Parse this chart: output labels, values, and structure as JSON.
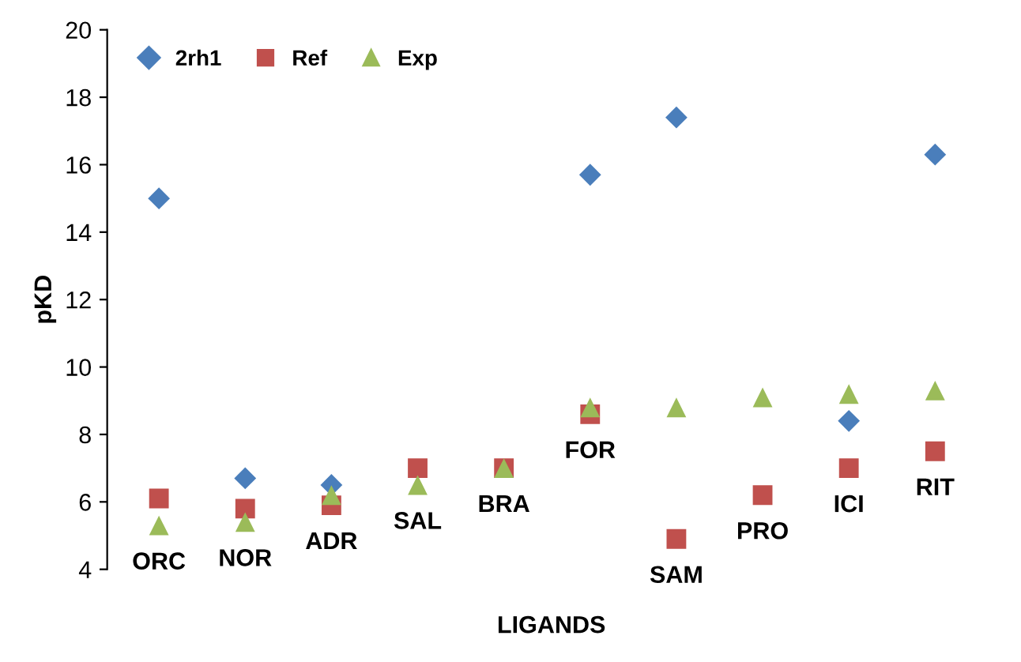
{
  "chart_data": {
    "type": "scatter",
    "xlabel": "LIGANDS",
    "ylabel": "pKD",
    "categories": [
      "ORC",
      "NOR",
      "ADR",
      "SAL",
      "BRA",
      "FOR",
      "SAM",
      "PRO",
      "ICI",
      "RIT"
    ],
    "series": [
      {
        "name": "2rh1",
        "color": "#4a7ebb",
        "marker": "diamond",
        "values": [
          15.0,
          6.7,
          6.5,
          null,
          null,
          15.7,
          17.4,
          null,
          8.4,
          16.3
        ]
      },
      {
        "name": "Ref",
        "color": "#c0504d",
        "marker": "square",
        "values": [
          6.1,
          5.8,
          5.9,
          7.0,
          7.0,
          8.6,
          4.9,
          6.2,
          7.0,
          7.5
        ]
      },
      {
        "name": "Exp",
        "color": "#9bbb59",
        "marker": "triangle",
        "values": [
          5.3,
          5.4,
          6.2,
          6.5,
          7.0,
          8.8,
          8.8,
          9.1,
          9.2,
          9.3
        ]
      }
    ],
    "ylim": [
      4,
      20
    ],
    "yticks": [
      4,
      6,
      8,
      10,
      12,
      14,
      16,
      18,
      20
    ],
    "grid": false,
    "legend": "top left"
  }
}
